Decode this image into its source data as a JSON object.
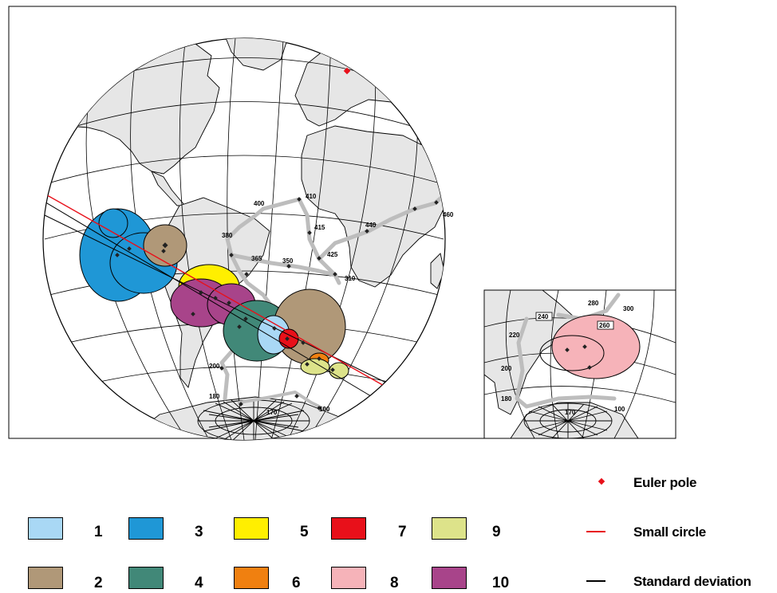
{
  "colors": {
    "1": "#a9d8f5",
    "2": "#b09878",
    "3": "#1f97d6",
    "4": "#418878",
    "5": "#ffef00",
    "6": "#f08010",
    "7": "#e8101a",
    "8": "#f6b3b9",
    "9": "#dde38a",
    "10": "#a8448a",
    "land": "#e6e6e6",
    "track": "#bdbdbd",
    "small_circle": "#e8101a",
    "euler_pole": "#e8101a"
  },
  "main_map": {
    "age_labels": [
      "400",
      "410",
      "415",
      "425",
      "440",
      "460",
      "380",
      "365",
      "350",
      "310",
      "200",
      "180",
      "170",
      "100"
    ]
  },
  "inset_map": {
    "age_labels": [
      "280",
      "300",
      "240",
      "260",
      "220",
      "200",
      "180",
      "170",
      "100"
    ]
  },
  "legend": {
    "groups": [
      {
        "number": "1",
        "color_key": "1"
      },
      {
        "number": "2",
        "color_key": "2"
      },
      {
        "number": "3",
        "color_key": "3"
      },
      {
        "number": "4",
        "color_key": "4"
      },
      {
        "number": "5",
        "color_key": "5"
      },
      {
        "number": "6",
        "color_key": "6"
      },
      {
        "number": "7",
        "color_key": "7"
      },
      {
        "number": "8",
        "color_key": "8"
      },
      {
        "number": "9",
        "color_key": "9"
      },
      {
        "number": "10",
        "color_key": "10"
      }
    ],
    "euler_pole_label": "Euler pole",
    "small_circle_label": "Small circle",
    "std_dev_label": "Standard deviation"
  }
}
